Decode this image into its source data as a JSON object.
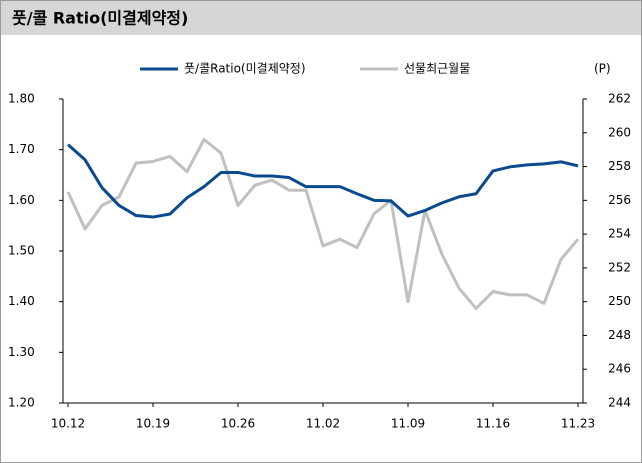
{
  "chart_data": {
    "type": "line",
    "title": "풋/콜 Ratio(미결제약정)",
    "y2_unit": "(P)",
    "categories": [
      "10.12",
      null,
      null,
      null,
      null,
      "10.19",
      null,
      null,
      null,
      null,
      "10.26",
      null,
      null,
      null,
      null,
      "11.02",
      null,
      null,
      null,
      null,
      "11.09",
      null,
      null,
      null,
      null,
      "11.16",
      null,
      null,
      null,
      null,
      "11.23"
    ],
    "series": [
      {
        "name": "풋/콜Ratio(미결제약정)",
        "color": "#0b4a8f",
        "axis": "y",
        "values": [
          1.71,
          1.68,
          1.625,
          1.59,
          1.57,
          1.567,
          1.573,
          1.605,
          1.627,
          1.655,
          1.655,
          1.648,
          1.648,
          1.645,
          1.627,
          1.627,
          1.627,
          1.613,
          1.6,
          1.599,
          1.569,
          1.58,
          1.595,
          1.607,
          1.613,
          1.658,
          1.666,
          1.67,
          1.672,
          1.676,
          1.668
        ]
      },
      {
        "name": "선물최근월물",
        "color": "#c0c0c0",
        "axis": "y2",
        "values": [
          256.5,
          254.3,
          255.7,
          256.2,
          258.2,
          258.3,
          258.6,
          257.7,
          259.6,
          258.8,
          255.7,
          256.9,
          257.2,
          256.6,
          256.6,
          253.3,
          253.7,
          253.2,
          255.2,
          256.0,
          250.0,
          255.4,
          252.8,
          250.8,
          249.6,
          250.6,
          250.4,
          250.4,
          249.9,
          252.5,
          253.7
        ]
      }
    ],
    "ylim": [
      1.2,
      1.8
    ],
    "yticks": [
      {
        "value": 1.2,
        "label": "1.20"
      },
      {
        "value": 1.3,
        "label": "1.30"
      },
      {
        "value": 1.4,
        "label": "1.40"
      },
      {
        "value": 1.5,
        "label": "1.50"
      },
      {
        "value": 1.6,
        "label": "1.60"
      },
      {
        "value": 1.7,
        "label": "1.70"
      },
      {
        "value": 1.8,
        "label": "1.80"
      }
    ],
    "y2lim": [
      244,
      262
    ],
    "y2ticks": [
      244,
      246,
      248,
      250,
      252,
      254,
      256,
      258,
      260,
      262
    ],
    "legend": "top"
  }
}
